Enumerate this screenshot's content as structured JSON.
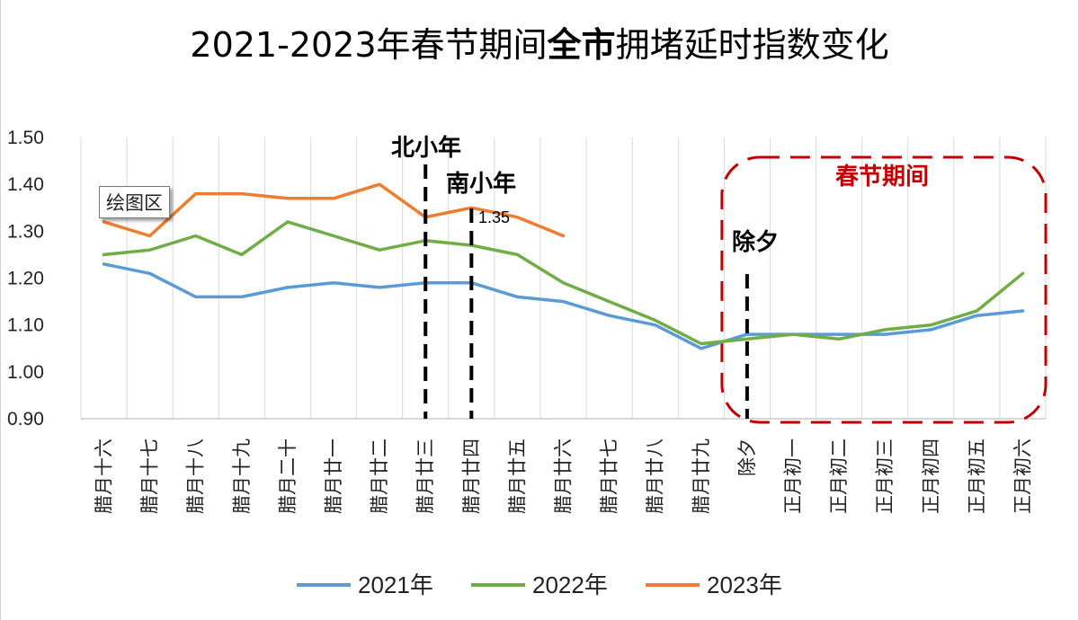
{
  "title": {
    "part1": "2021-2023年春节期间",
    "part2": "全市",
    "part3": "拥堵延时指数变化"
  },
  "tooltip": "绘图区",
  "annotations": {
    "north_small_new_year": "北小年",
    "south_small_new_year": "南小年",
    "new_years_eve": "除夕",
    "spring_festival_period": "春节期间",
    "data_label_2023": "1.35"
  },
  "colors": {
    "2021": "#5b9bd5",
    "2022": "#70ad47",
    "2023": "#ed7d31",
    "festival_box": "#c00000",
    "gridline": "#d9d9d9"
  },
  "chart_data": {
    "type": "line",
    "title": "2021-2023年春节期间全市拥堵延时指数变化",
    "categories": [
      "腊月十六",
      "腊月十七",
      "腊月十八",
      "腊月十九",
      "腊月二十",
      "腊月廿一",
      "腊月廿二",
      "腊月廿三",
      "腊月廿四",
      "腊月廿五",
      "腊月廿六",
      "腊月廿七",
      "腊月廿八",
      "腊月廿九",
      "除夕",
      "正月初一",
      "正月初二",
      "正月初三",
      "正月初四",
      "正月初五",
      "正月初六"
    ],
    "series": [
      {
        "name": "2021年",
        "values": [
          1.23,
          1.21,
          1.16,
          1.16,
          1.18,
          1.19,
          1.18,
          1.19,
          1.19,
          1.16,
          1.15,
          1.12,
          1.1,
          1.05,
          1.08,
          1.08,
          1.08,
          1.08,
          1.09,
          1.12,
          1.13
        ]
      },
      {
        "name": "2022年",
        "values": [
          1.25,
          1.26,
          1.29,
          1.25,
          1.32,
          1.29,
          1.26,
          1.28,
          1.27,
          1.25,
          1.19,
          1.15,
          1.11,
          1.06,
          1.07,
          1.08,
          1.07,
          1.09,
          1.1,
          1.13,
          1.21
        ]
      },
      {
        "name": "2023年",
        "values": [
          1.32,
          1.29,
          1.38,
          1.38,
          1.37,
          1.37,
          1.4,
          1.33,
          1.35,
          1.33,
          1.29,
          null,
          null,
          null,
          null,
          null,
          null,
          null,
          null,
          null,
          null
        ]
      }
    ],
    "yticks": [
      "1.50",
      "1.40",
      "1.30",
      "1.20",
      "1.10",
      "1.00",
      "0.90"
    ],
    "ylim": [
      0.9,
      1.5
    ],
    "xlabel": "",
    "ylabel": "",
    "grid": "vertical",
    "legend_position": "bottom",
    "markers": [
      {
        "category": "腊月廿三",
        "label": "北小年"
      },
      {
        "category": "腊月廿四",
        "label": "南小年"
      },
      {
        "category": "除夕",
        "label": "除夕"
      }
    ],
    "highlight_region": {
      "from": "除夕",
      "to": "正月初六",
      "label": "春节期间"
    }
  }
}
